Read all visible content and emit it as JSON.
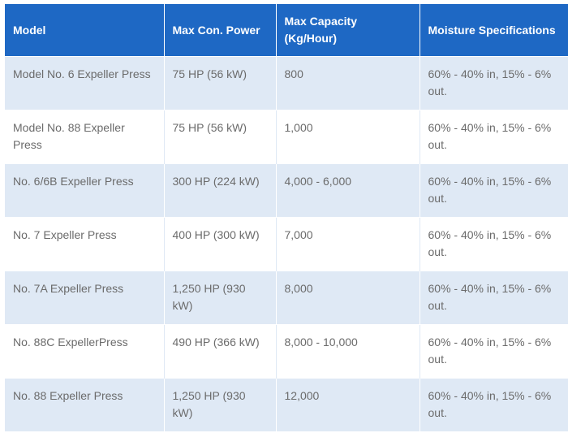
{
  "table": {
    "headers": [
      "Model",
      "Max Con. Power",
      "Max Capacity (Kg/Hour)",
      "Moisture Specifications"
    ],
    "rows": [
      [
        "Model No. 6 Expeller Press",
        "75 HP (56 kW)",
        "800",
        "60% - 40% in, 15% - 6% out."
      ],
      [
        "Model No. 88 Expeller Press",
        "75 HP (56 kW)",
        "1,000",
        "60% - 40% in, 15% - 6% out."
      ],
      [
        "No. 6/6B Expeller Press",
        "300 HP (224 kW)",
        "4,000 - 6,000",
        "60% - 40% in, 15% - 6% out."
      ],
      [
        "No. 7 Expeller Press",
        "400 HP (300 kW)",
        "7,000",
        "60% - 40% in, 15% - 6% out."
      ],
      [
        "No. 7A Expeller Press",
        "1,250 HP (930 kW)",
        "8,000",
        "60% - 40% in, 15% - 6% out."
      ],
      [
        "No. 88C ExpellerPress",
        "490 HP (366 kW)",
        "8,000 - 10,000",
        "60% - 40% in, 15% - 6% out."
      ],
      [
        "No. 88 Expeller Press",
        "1,250 HP (930 kW)",
        "12,000",
        "60% - 40% in, 15% - 6% out."
      ]
    ]
  },
  "colors": {
    "header_bg": "#1e68c4",
    "header_text": "#ffffff",
    "row_alt_bg": "#dfe9f5",
    "row_bg": "#ffffff",
    "cell_text": "#6b6b6b"
  }
}
